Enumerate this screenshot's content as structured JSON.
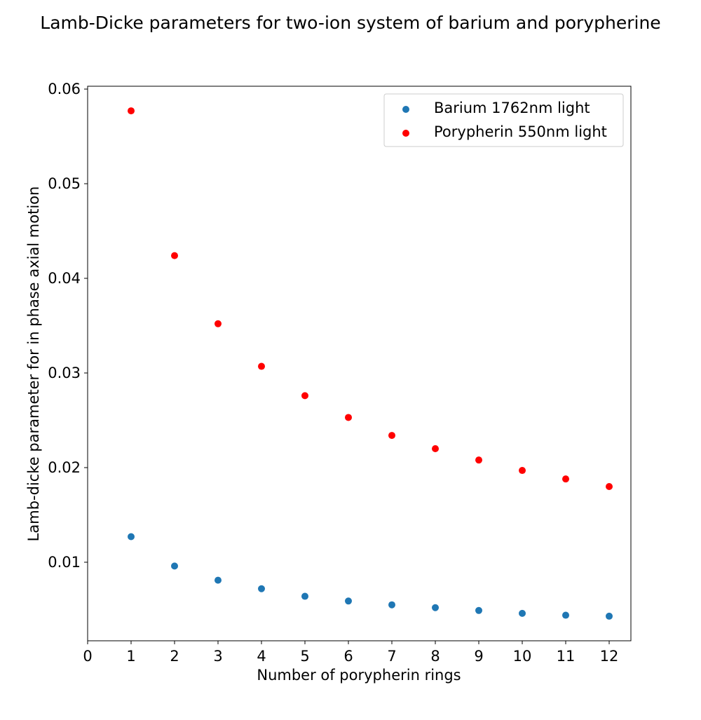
{
  "chart_data": {
    "type": "scatter",
    "title": "Lamb-Dicke parameters for two-ion system of barium and porypherine",
    "xlabel": "Number of porypherin rings",
    "ylabel": "Lamb-dicke parameter for in phase axial motion",
    "xlim": [
      0,
      12.5
    ],
    "ylim": [
      0.0017,
      0.0603
    ],
    "xticks": [
      0,
      1,
      2,
      3,
      4,
      5,
      6,
      7,
      8,
      9,
      10,
      11,
      12
    ],
    "yticks": [
      0.01,
      0.02,
      0.03,
      0.04,
      0.05,
      0.06
    ],
    "ytick_labels": [
      "0.01",
      "0.02",
      "0.03",
      "0.04",
      "0.05",
      "0.06"
    ],
    "grid": false,
    "legend_position": "top-right",
    "series": [
      {
        "name": "Barium 1762nm light",
        "color": "#1f77b4",
        "x": [
          1,
          2,
          3,
          4,
          5,
          6,
          7,
          8,
          9,
          10,
          11,
          12
        ],
        "y": [
          0.0127,
          0.0096,
          0.0081,
          0.0072,
          0.0064,
          0.0059,
          0.0055,
          0.0052,
          0.0049,
          0.0046,
          0.0044,
          0.0043
        ]
      },
      {
        "name": "Porypherin 550nm light",
        "color": "#ff0000",
        "x": [
          1,
          2,
          3,
          4,
          5,
          6,
          7,
          8,
          9,
          10,
          11,
          12
        ],
        "y": [
          0.0577,
          0.0424,
          0.0352,
          0.0307,
          0.0276,
          0.0253,
          0.0234,
          0.022,
          0.0208,
          0.0197,
          0.0188,
          0.018
        ]
      }
    ]
  }
}
